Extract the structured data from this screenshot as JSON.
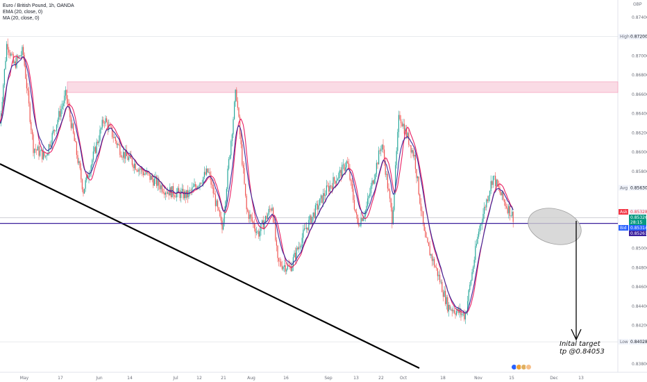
{
  "legend": {
    "symbol_line": "Euro / British Pound, 1h, OANDA",
    "ema_line": "EMA (20, close, 0)",
    "ma_line": "MA (20, close, 0)"
  },
  "currency": "GBP",
  "colors": {
    "up_candle": "#26a69a",
    "down_candle": "#ef5350",
    "ema": "#3a2a9a",
    "ma": "#e91e63",
    "zone": "#f8bbd0",
    "ask": "#f23645",
    "bid": "#2962ff",
    "last": "#089981"
  },
  "chart_data": {
    "type": "line",
    "title": "Euro / British Pound, 1h, OANDA",
    "ylim": [
      0.838,
      0.875
    ],
    "y_ticks": [
      "0.87400",
      "0.87000",
      "0.86800",
      "0.86600",
      "0.86400",
      "0.86200",
      "0.86000",
      "0.85800",
      "0.85000",
      "0.84800",
      "0.84600",
      "0.84400",
      "0.84200",
      "0.83800"
    ],
    "x_ticks": [
      "May",
      "17",
      "Jun",
      "14",
      "Jul",
      "12",
      "21",
      "Aug",
      "16",
      "Sep",
      "13",
      "22",
      "Oct",
      "18",
      "Nov",
      "15",
      "Dec",
      "13"
    ],
    "series": [
      {
        "x": [
          "May",
          "May",
          "May",
          "May",
          "17",
          "17",
          "17",
          "Jun",
          "Jun",
          "Jun",
          "14",
          "14",
          "Jul",
          "Jul",
          "12",
          "21",
          "21",
          "21",
          "Aug",
          "Aug",
          "16",
          "16",
          "16",
          "Sep",
          "Sep",
          "13",
          "13",
          "22",
          "22",
          "Oct",
          "Oct",
          "Oct",
          "18",
          "18",
          "18",
          "Nov",
          "Nov",
          "Nov",
          "15"
        ],
        "values": [
          0.863,
          0.8715,
          0.869,
          0.8705,
          0.8605,
          0.8595,
          0.866,
          0.856,
          0.8635,
          0.86,
          0.858,
          0.856,
          0.8555,
          0.858,
          0.852,
          0.8665,
          0.854,
          0.8515,
          0.8545,
          0.8485,
          0.848,
          0.852,
          0.856,
          0.858,
          0.859,
          0.8525,
          0.854,
          0.861,
          0.853,
          0.864,
          0.8595,
          0.851,
          0.8475,
          0.844,
          0.843,
          0.852,
          0.8575,
          0.855,
          0.8532
        ]
      }
    ],
    "zones": [
      {
        "name": "resistance",
        "y_top": 0.8673,
        "y_bottom": 0.8662
      }
    ],
    "price_tags": [
      {
        "label": "High",
        "value": "0.87200"
      },
      {
        "label": "Avg",
        "value": "0.85630"
      },
      {
        "label": "Ask",
        "value": "0.85328"
      },
      {
        "label": "",
        "value": "0.85326"
      },
      {
        "label": "",
        "value": "28:15"
      },
      {
        "label": "Bid",
        "value": "0.85314"
      },
      {
        "label": "",
        "value": "0.85261"
      },
      {
        "label": "Low",
        "value": "0.84028"
      }
    ],
    "horizontal_line": 0.8526,
    "annotation": "Inital target tp @0.84053",
    "grid": false
  }
}
